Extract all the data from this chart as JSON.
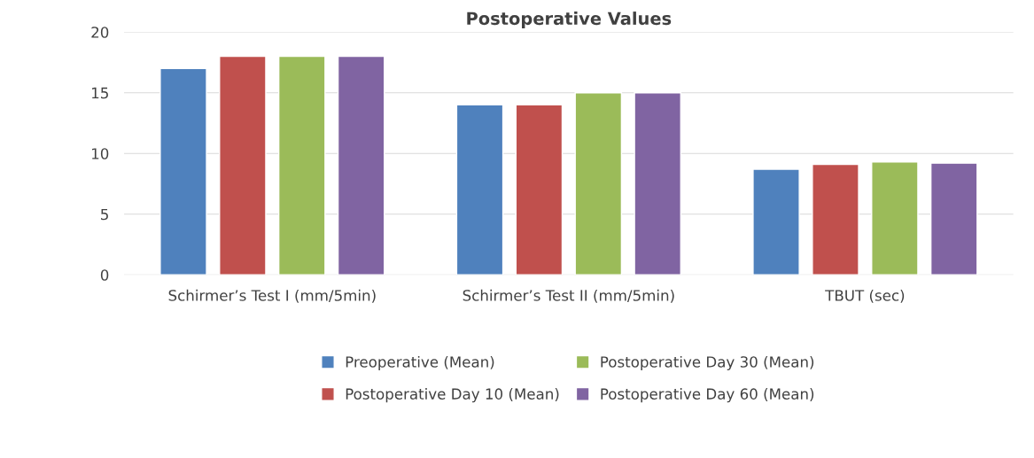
{
  "chart_data": {
    "type": "bar",
    "title": "Postoperative Values",
    "categories": [
      "Schirmer’s Test I (mm/5min)",
      "Schirmer’s Test II (mm/5min)",
      "TBUT (sec)"
    ],
    "series": [
      {
        "name": "Preoperative (Mean)",
        "color": "#4f81bd",
        "values": [
          17,
          14,
          8.7
        ]
      },
      {
        "name": "Postoperative Day 10 (Mean)",
        "color": "#c0504d",
        "values": [
          18,
          14,
          9.1
        ]
      },
      {
        "name": "Postoperative Day 30 (Mean)",
        "color": "#9bbb59",
        "values": [
          18,
          15,
          9.3
        ]
      },
      {
        "name": "Postoperative Day 60 (Mean)",
        "color": "#8064a2",
        "values": [
          18,
          15,
          9.2
        ]
      }
    ],
    "ylim": [
      0,
      20
    ],
    "yticks": [
      0,
      5,
      10,
      15,
      20
    ],
    "grid": "y",
    "legend": "bottom"
  }
}
